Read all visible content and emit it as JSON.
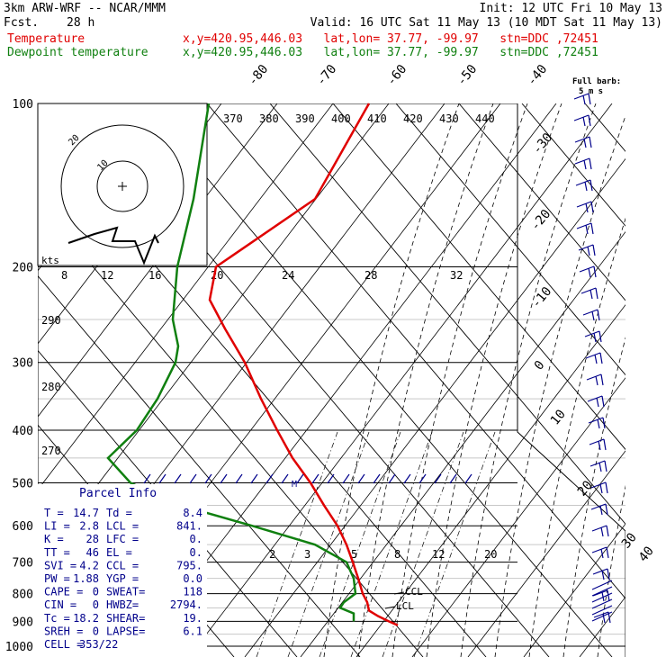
{
  "header": {
    "model": "3km ARW-WRF -- NCAR/MMM",
    "init": "Init: 12 UTC Fri 10 May 13",
    "fcst_label": "Fcst.",
    "fcst_value": "28 h",
    "valid": "Valid: 16 UTC Sat 11 May 13 (10 MDT Sat 11 May 13)",
    "temp_name": "Temperature",
    "temp_info": "x,y=420.95,446.03   lat,lon= 37.77, -99.97   stn=DDC ,72451",
    "dew_name": "Dewpoint temperature",
    "dew_info": "x,y=420.95,446.03   lat,lon= 37.77, -99.97   stn=DDC ,72451"
  },
  "barb_legend": {
    "line1": "Full barb:",
    "line2": "5 m s"
  },
  "hodograph": {
    "units": "kts",
    "ring_labels": [
      "10",
      "20"
    ]
  },
  "parcel_info": {
    "title": "Parcel Info",
    "rows": [
      [
        "T  =",
        "14.7",
        "Td =",
        "8.4"
      ],
      [
        "LI =",
        "2.8",
        "LCL =",
        "841."
      ],
      [
        "K  =",
        "28",
        "LFC =",
        "0."
      ],
      [
        "TT =",
        "46",
        "EL  =",
        "0."
      ],
      [
        "SVI =",
        "4.2",
        "CCL =",
        "795."
      ],
      [
        "PW =",
        "1.88",
        "YGP =",
        "0.0"
      ],
      [
        "CAPE =",
        "0",
        "SWEAT=",
        "118"
      ],
      [
        "CIN =",
        "0",
        "HWBZ=",
        "2794."
      ],
      [
        "Tc =",
        "18.2",
        "SHEAR=",
        "19."
      ],
      [
        "SREH =",
        "0",
        "LAPSE=",
        "6.1"
      ],
      [
        "CELL =",
        "353/22",
        "",
        ""
      ]
    ]
  },
  "annotations": {
    "ccl": "CCL",
    "lcl": "LCL",
    "m": "M"
  },
  "chart_data": {
    "type": "line",
    "ylim": [
      100,
      1000
    ],
    "pressure_levels": [
      100,
      200,
      300,
      400,
      500,
      600,
      700,
      800,
      900,
      1000
    ],
    "pressure_labels": [
      "100",
      "200",
      "300",
      "400",
      "500",
      "600",
      "700",
      "800",
      "900",
      "1000"
    ],
    "temperature_ticks": [
      "-80",
      "-70",
      "-60",
      "-50",
      "-40",
      "-30",
      "-20",
      "-10",
      "0",
      "10",
      "20",
      "30",
      "40"
    ],
    "theta_labels": [
      "370",
      "380",
      "390",
      "400",
      "410",
      "420",
      "430",
      "440"
    ],
    "thetae_labels": [
      "290",
      "280",
      "270"
    ],
    "mixing_ratio_labels": [
      "2",
      "3",
      "5",
      "8",
      "12",
      "20"
    ],
    "wind_scale_labels": [
      "8",
      "12",
      "16",
      "20",
      "24",
      "28",
      "32"
    ],
    "series": [
      {
        "name": "Temperature",
        "color": "#e00000",
        "points": [
          [
            100,
            410
          ],
          [
            150,
            350
          ],
          [
            200,
            240
          ],
          [
            230,
            233
          ],
          [
            260,
            250
          ],
          [
            300,
            272
          ],
          [
            350,
            290
          ],
          [
            400,
            308
          ],
          [
            450,
            325
          ],
          [
            500,
            345
          ],
          [
            550,
            360
          ],
          [
            600,
            375
          ],
          [
            650,
            385
          ],
          [
            700,
            392
          ],
          [
            750,
            398
          ],
          [
            800,
            403
          ],
          [
            830,
            408
          ],
          [
            860,
            410
          ],
          [
            880,
            420
          ],
          [
            900,
            432
          ],
          [
            915,
            442
          ]
        ]
      },
      {
        "name": "Dewpoint temperature",
        "color": "#108010",
        "points": [
          [
            100,
            232
          ],
          [
            150,
            215
          ],
          [
            200,
            197
          ],
          [
            250,
            192
          ],
          [
            280,
            198
          ],
          [
            300,
            195
          ],
          [
            350,
            175
          ],
          [
            400,
            152
          ],
          [
            450,
            120
          ],
          [
            500,
            145
          ],
          [
            550,
            200
          ],
          [
            600,
            280
          ],
          [
            650,
            350
          ],
          [
            700,
            385
          ],
          [
            750,
            393
          ],
          [
            800,
            395
          ],
          [
            830,
            382
          ],
          [
            850,
            378
          ],
          [
            870,
            393
          ],
          [
            900,
            393
          ]
        ]
      }
    ]
  }
}
